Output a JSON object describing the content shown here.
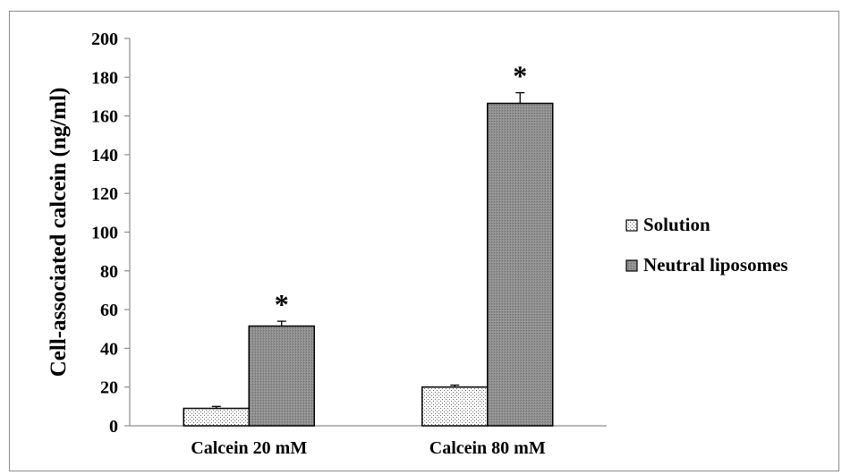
{
  "chart_data": {
    "type": "bar",
    "ylabel": "Cell-associated calcein (ng/ml)",
    "ylim": [
      0,
      200
    ],
    "ytick_step": 20,
    "categories": [
      "Calcein 20 mM",
      "Calcein 80 mM"
    ],
    "series": [
      {
        "name": "Solution",
        "values": [
          9,
          20
        ],
        "errors": [
          1,
          1
        ],
        "fill": "dotted",
        "color": "#ffffff"
      },
      {
        "name": "Neutral liposomes",
        "values": [
          51.5,
          166.5
        ],
        "errors": [
          2.5,
          5.5
        ],
        "fill": "gray",
        "color": "#8a8a8a"
      }
    ],
    "annotations": [
      {
        "category": 0,
        "series": 1,
        "text": "*"
      },
      {
        "category": 1,
        "series": 1,
        "text": "*"
      }
    ],
    "legend_position": "right",
    "grid": false
  }
}
